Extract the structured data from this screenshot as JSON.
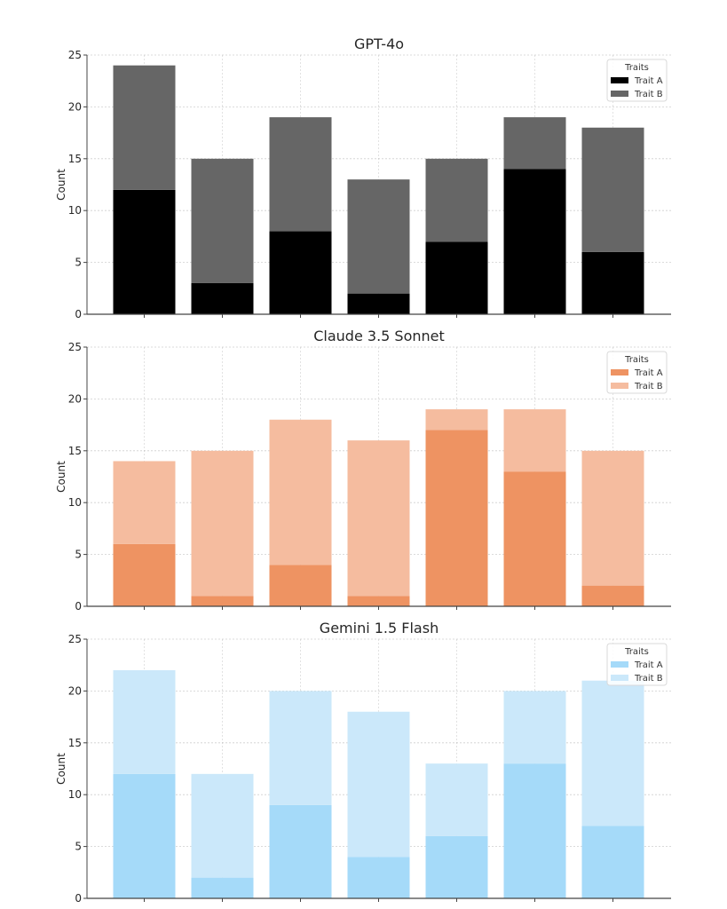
{
  "chart_data": [
    {
      "type": "bar",
      "stacked": true,
      "title": "GPT-4o",
      "xlabel": "",
      "ylabel": "Count",
      "ylim": [
        0,
        25
      ],
      "yticks": [
        0,
        5,
        10,
        15,
        20,
        25
      ],
      "categories": [
        "",
        "",
        "",
        "",
        "",
        "",
        ""
      ],
      "grid": true,
      "legend": {
        "title": "Traits",
        "position": "top-right"
      },
      "series": [
        {
          "name": "Trait A",
          "color": "#000000",
          "values": [
            12,
            3,
            8,
            2,
            7,
            14,
            6
          ]
        },
        {
          "name": "Trait B",
          "color": "#666666",
          "values": [
            12,
            12,
            11,
            11,
            8,
            5,
            12
          ]
        }
      ]
    },
    {
      "type": "bar",
      "stacked": true,
      "title": "Claude 3.5 Sonnet",
      "xlabel": "",
      "ylabel": "Count",
      "ylim": [
        0,
        25
      ],
      "yticks": [
        0,
        5,
        10,
        15,
        20,
        25
      ],
      "categories": [
        "",
        "",
        "",
        "",
        "",
        "",
        ""
      ],
      "grid": true,
      "legend": {
        "title": "Traits",
        "position": "top-right"
      },
      "series": [
        {
          "name": "Trait A",
          "color": "#EE9362",
          "values": [
            6,
            1,
            4,
            1,
            17,
            13,
            2
          ]
        },
        {
          "name": "Trait B",
          "color": "#F5BC9F",
          "values": [
            8,
            14,
            14,
            15,
            2,
            6,
            13
          ]
        }
      ]
    },
    {
      "type": "bar",
      "stacked": true,
      "title": "Gemini 1.5 Flash",
      "xlabel": "",
      "ylabel": "Count",
      "ylim": [
        0,
        25
      ],
      "yticks": [
        0,
        5,
        10,
        15,
        20,
        25
      ],
      "categories": [
        "",
        "",
        "",
        "",
        "",
        "",
        ""
      ],
      "grid": true,
      "legend": {
        "title": "Traits",
        "position": "top-right"
      },
      "series": [
        {
          "name": "Trait A",
          "color": "#A5DAF9",
          "values": [
            12,
            2,
            9,
            4,
            6,
            13,
            7
          ]
        },
        {
          "name": "Trait B",
          "color": "#CBE8FA",
          "values": [
            10,
            10,
            11,
            14,
            7,
            7,
            14
          ]
        }
      ]
    }
  ]
}
